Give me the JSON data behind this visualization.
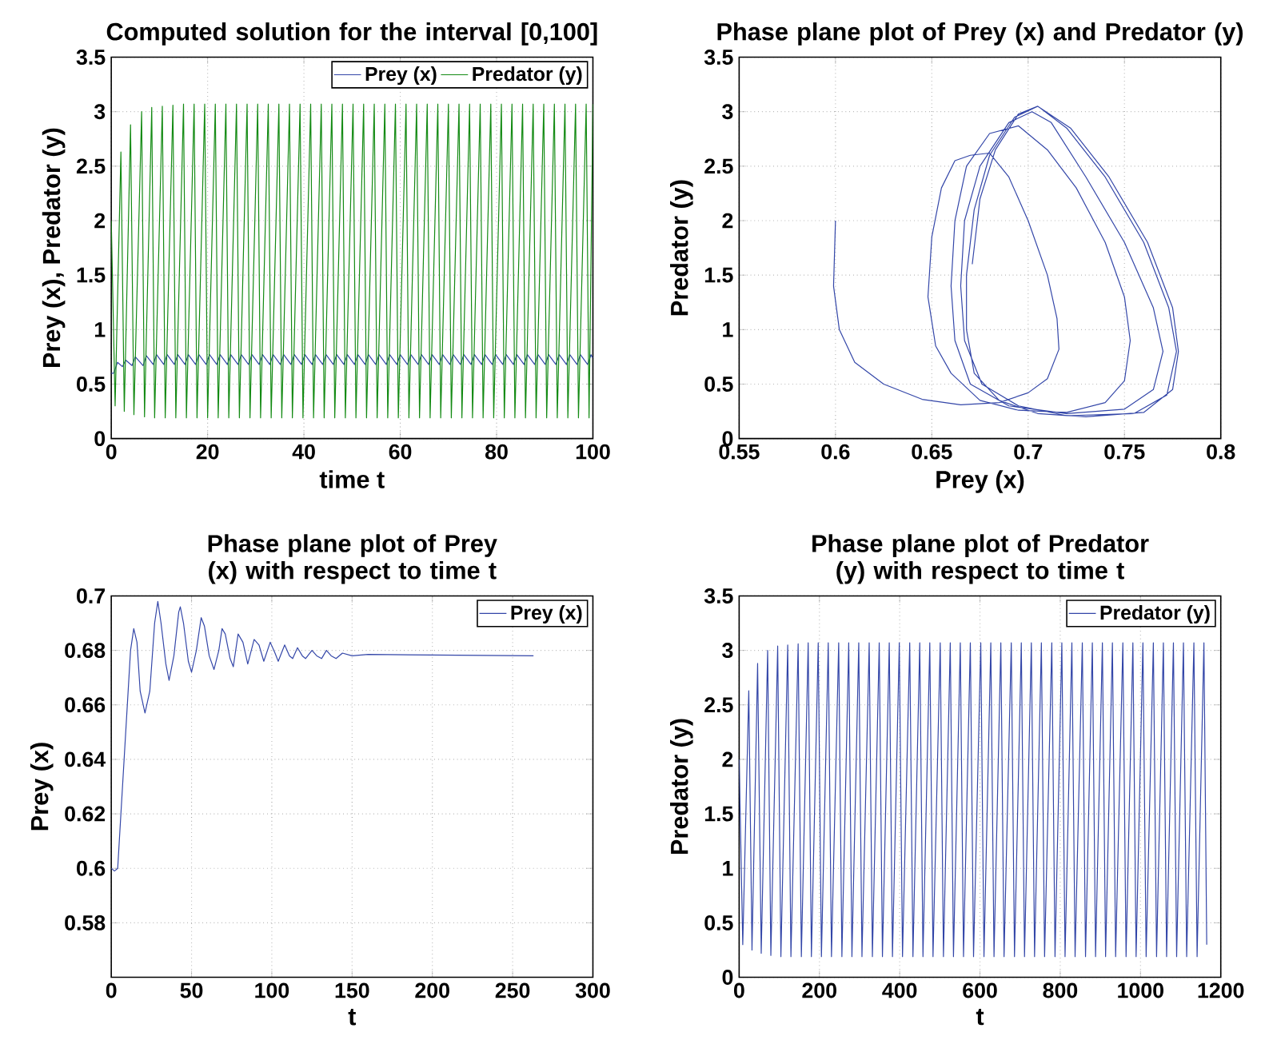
{
  "chart_data": [
    {
      "type": "line",
      "title": "Computed solution for the interval [0,100]",
      "xlabel": "time t",
      "ylabel": "Prey (x), Predator (y)",
      "xlim": [
        0,
        100
      ],
      "xticks": [
        0,
        20,
        40,
        60,
        80,
        100
      ],
      "ylim": [
        0,
        3.5
      ],
      "yticks": [
        0,
        0.5,
        1,
        1.5,
        2,
        2.5,
        3,
        3.5
      ],
      "grid": true,
      "legend": "top right",
      "series": [
        {
          "name": "Prey (x)",
          "color": "#3346a8",
          "x": [
            0,
            0.5,
            1.3,
            2.3,
            3.0,
            4.3,
            5.0,
            6.6,
            7.3,
            8.7,
            9.4,
            10.9,
            11.6,
            13.1,
            13.8,
            15.3,
            16.0,
            17.5,
            18.2,
            19.7,
            20.4,
            21.9,
            22.6,
            24.1,
            24.8,
            26.3,
            27.0,
            28.5,
            29.2,
            30.7,
            31.4,
            32.9,
            33.6,
            35.1,
            35.8,
            37.3,
            38.0,
            39.5,
            40.2,
            41.7,
            42.4,
            43.9,
            44.6,
            46.1,
            46.8,
            48.3,
            49.0,
            50.5,
            51.2,
            52.7,
            53.4,
            54.9,
            55.6,
            57.1,
            57.8,
            59.3,
            60.0,
            61.5,
            62.2,
            63.7,
            64.4,
            65.9,
            66.6,
            68.1,
            68.8,
            70.3,
            71.0,
            72.5,
            73.2,
            74.7,
            75.4,
            76.9,
            77.6,
            79.1,
            79.8,
            81.3,
            82.0,
            83.5,
            84.2,
            85.7,
            86.4,
            87.9,
            88.6,
            90.1,
            90.8,
            92.3,
            93.0,
            94.5,
            95.2,
            96.7,
            97.4,
            98.9,
            99.6,
            100
          ],
          "values": [
            0.6,
            0.6,
            0.7,
            0.66,
            0.72,
            0.67,
            0.75,
            0.67,
            0.76,
            0.68,
            0.77,
            0.68,
            0.77,
            0.68,
            0.77,
            0.68,
            0.77,
            0.68,
            0.77,
            0.68,
            0.77,
            0.68,
            0.77,
            0.68,
            0.77,
            0.68,
            0.77,
            0.68,
            0.77,
            0.68,
            0.77,
            0.68,
            0.77,
            0.68,
            0.77,
            0.68,
            0.77,
            0.68,
            0.77,
            0.68,
            0.77,
            0.68,
            0.77,
            0.68,
            0.77,
            0.68,
            0.77,
            0.68,
            0.77,
            0.68,
            0.77,
            0.68,
            0.77,
            0.68,
            0.77,
            0.68,
            0.77,
            0.68,
            0.77,
            0.68,
            0.77,
            0.68,
            0.77,
            0.68,
            0.77,
            0.68,
            0.77,
            0.68,
            0.77,
            0.68,
            0.77,
            0.68,
            0.77,
            0.68,
            0.77,
            0.68,
            0.77,
            0.68,
            0.77,
            0.68,
            0.77,
            0.68,
            0.77,
            0.68,
            0.77,
            0.68,
            0.77,
            0.68,
            0.77,
            0.68,
            0.77,
            0.68,
            0.77,
            0.74
          ]
        },
        {
          "name": "Predator (y)",
          "color": "#138a13",
          "x": [
            0,
            0.8,
            2.0,
            2.7,
            4.0,
            4.7,
            6.3,
            6.9,
            8.4,
            9.0,
            10.6,
            11.2,
            12.8,
            13.4,
            15.0,
            15.6,
            17.2,
            17.8,
            19.4,
            20.0,
            21.6,
            22.2,
            23.8,
            24.4,
            26.0,
            26.6,
            28.2,
            28.8,
            30.4,
            31.0,
            32.6,
            33.2,
            34.8,
            35.4,
            37.0,
            37.6,
            39.2,
            39.8,
            41.4,
            42.0,
            43.6,
            44.2,
            45.8,
            46.4,
            48.0,
            48.6,
            50.2,
            50.8,
            52.4,
            53.0,
            54.6,
            55.2,
            56.8,
            57.4,
            59.0,
            59.6,
            61.2,
            61.8,
            63.4,
            64.0,
            65.6,
            66.2,
            67.8,
            68.4,
            70.0,
            70.6,
            72.2,
            72.8,
            74.4,
            75.0,
            76.6,
            77.2,
            78.8,
            79.4,
            81.0,
            81.6,
            83.2,
            83.8,
            85.4,
            86.0,
            87.6,
            88.2,
            89.8,
            90.4,
            92.0,
            92.6,
            94.2,
            94.8,
            96.4,
            97.0,
            98.6,
            99.2,
            100
          ],
          "values": [
            2.0,
            0.3,
            2.63,
            0.25,
            2.88,
            0.22,
            3.0,
            0.2,
            3.04,
            0.19,
            3.05,
            0.19,
            3.06,
            0.19,
            3.07,
            0.19,
            3.07,
            0.19,
            3.07,
            0.19,
            3.07,
            0.19,
            3.07,
            0.19,
            3.07,
            0.19,
            3.07,
            0.19,
            3.07,
            0.19,
            3.07,
            0.19,
            3.07,
            0.19,
            3.07,
            0.19,
            3.07,
            0.19,
            3.07,
            0.19,
            3.07,
            0.19,
            3.07,
            0.19,
            3.07,
            0.19,
            3.07,
            0.19,
            3.07,
            0.19,
            3.07,
            0.19,
            3.07,
            0.19,
            3.07,
            0.19,
            3.07,
            0.19,
            3.07,
            0.19,
            3.07,
            0.19,
            3.07,
            0.19,
            3.07,
            0.19,
            3.07,
            0.19,
            3.07,
            0.19,
            3.07,
            0.19,
            3.07,
            0.19,
            3.07,
            0.19,
            3.07,
            0.19,
            3.07,
            0.19,
            3.07,
            0.19,
            3.07,
            0.19,
            3.07,
            0.19,
            3.07,
            0.19,
            3.07,
            0.19,
            3.07,
            0.19,
            3.07
          ]
        }
      ]
    },
    {
      "type": "line",
      "title": "Phase plane plot of Prey (x) and Predator (y)",
      "xlabel": "Prey (x)",
      "ylabel": "Predator (y)",
      "xlim": [
        0.55,
        0.8
      ],
      "xticks": [
        0.55,
        0.6,
        0.65,
        0.7,
        0.75,
        0.8
      ],
      "ylim": [
        0,
        3.5
      ],
      "yticks": [
        0,
        0.5,
        1,
        1.5,
        2,
        2.5,
        3,
        3.5
      ],
      "grid": true,
      "series": [
        {
          "color": "#3346a8",
          "x": [
            0.6,
            0.599,
            0.602,
            0.61,
            0.625,
            0.645,
            0.665,
            0.685,
            0.7,
            0.71,
            0.716,
            0.715,
            0.71,
            0.7,
            0.69,
            0.68,
            0.67,
            0.662,
            0.655,
            0.65,
            0.648,
            0.652,
            0.66,
            0.675,
            0.695,
            0.72,
            0.74,
            0.75,
            0.753,
            0.75,
            0.74,
            0.725,
            0.71,
            0.695,
            0.68,
            0.668,
            0.662,
            0.66,
            0.662,
            0.67,
            0.69,
            0.72,
            0.75,
            0.765,
            0.77,
            0.765,
            0.75,
            0.73,
            0.712,
            0.702,
            0.69,
            0.675,
            0.667,
            0.665,
            0.667,
            0.676,
            0.695,
            0.72,
            0.755,
            0.772,
            0.777,
            0.773,
            0.76,
            0.74,
            0.72,
            0.705,
            0.693,
            0.68,
            0.672,
            0.668,
            0.668,
            0.672,
            0.685,
            0.705,
            0.73,
            0.76,
            0.775,
            0.778,
            0.775,
            0.762,
            0.742,
            0.722,
            0.705,
            0.695,
            0.683,
            0.675,
            0.671
          ],
          "values": [
            2.0,
            1.4,
            1.0,
            0.7,
            0.5,
            0.36,
            0.31,
            0.33,
            0.42,
            0.55,
            0.82,
            1.1,
            1.5,
            2.0,
            2.4,
            2.62,
            2.6,
            2.55,
            2.3,
            1.85,
            1.3,
            0.85,
            0.6,
            0.35,
            0.26,
            0.24,
            0.33,
            0.53,
            0.9,
            1.3,
            1.8,
            2.3,
            2.65,
            2.87,
            2.8,
            2.5,
            2.0,
            1.4,
            0.9,
            0.5,
            0.3,
            0.23,
            0.27,
            0.45,
            0.8,
            1.2,
            1.8,
            2.4,
            2.9,
            3.0,
            2.9,
            2.5,
            2.0,
            1.4,
            0.9,
            0.5,
            0.3,
            0.21,
            0.23,
            0.4,
            0.8,
            1.2,
            1.8,
            2.4,
            2.85,
            3.05,
            2.95,
            2.6,
            2.1,
            1.5,
            1.0,
            0.6,
            0.35,
            0.23,
            0.2,
            0.24,
            0.45,
            0.8,
            1.2,
            1.8,
            2.4,
            2.85,
            3.05,
            2.98,
            2.65,
            2.2,
            1.6
          ]
        }
      ]
    },
    {
      "type": "line",
      "title": "Phase plane plot of Prey (x) with respect to time t",
      "xlabel": "t",
      "ylabel": "Prey (x)",
      "xlim": [
        0,
        300
      ],
      "xticks": [
        0,
        50,
        100,
        150,
        200,
        250,
        300
      ],
      "ylim": [
        0.56,
        0.7
      ],
      "yticks": [
        0.58,
        0.6,
        0.62,
        0.64,
        0.66,
        0.68,
        0.7
      ],
      "grid": true,
      "legend": "top right",
      "series": [
        {
          "name": "Prey (x)",
          "color": "#3346a8",
          "x": [
            0,
            2,
            4,
            8,
            12,
            14,
            16,
            18,
            21,
            24,
            27,
            29,
            31,
            34,
            36,
            39,
            42,
            43,
            45,
            48,
            50,
            53,
            56,
            58,
            61,
            64,
            67,
            69,
            71,
            74,
            76,
            79,
            82,
            85,
            89,
            92,
            95,
            99,
            102,
            104,
            108,
            111,
            113,
            116,
            119,
            121,
            125,
            128,
            131,
            134,
            137,
            140,
            144,
            150,
            160,
            263
          ],
          "values": [
            0.6,
            0.599,
            0.6,
            0.64,
            0.68,
            0.688,
            0.683,
            0.665,
            0.657,
            0.665,
            0.69,
            0.698,
            0.69,
            0.675,
            0.669,
            0.678,
            0.694,
            0.696,
            0.69,
            0.676,
            0.672,
            0.68,
            0.692,
            0.689,
            0.678,
            0.673,
            0.68,
            0.688,
            0.686,
            0.677,
            0.674,
            0.686,
            0.683,
            0.675,
            0.684,
            0.682,
            0.676,
            0.683,
            0.679,
            0.676,
            0.682,
            0.678,
            0.677,
            0.681,
            0.678,
            0.677,
            0.68,
            0.678,
            0.677,
            0.68,
            0.678,
            0.677,
            0.679,
            0.678,
            0.6785,
            0.678
          ]
        }
      ]
    },
    {
      "type": "line",
      "title": "Phase plane plot of Predator (y) with respect to time t",
      "xlabel": "t",
      "ylabel": "Predator (y)",
      "xlim": [
        0,
        1200
      ],
      "xticks": [
        0,
        200,
        400,
        600,
        800,
        1000,
        1200
      ],
      "ylim": [
        0,
        3.5
      ],
      "yticks": [
        0,
        0.5,
        1,
        1.5,
        2,
        2.5,
        3,
        3.5
      ],
      "grid": true,
      "legend": "top right",
      "series": [
        {
          "name": "Predator (y)",
          "color": "#3346a8",
          "x": [
            0,
            9,
            24,
            32,
            46,
            55,
            71,
            79,
            96,
            104,
            121,
            129,
            147,
            155,
            172,
            180,
            197,
            205,
            222,
            230,
            248,
            256,
            273,
            281,
            298,
            306,
            324,
            332,
            349,
            357,
            374,
            382,
            399,
            407,
            425,
            433,
            450,
            458,
            475,
            483,
            501,
            509,
            526,
            534,
            551,
            559,
            576,
            584,
            602,
            610,
            627,
            635,
            652,
            660,
            678,
            686,
            703,
            711,
            728,
            736,
            753,
            761,
            779,
            787,
            804,
            812,
            829,
            837,
            855,
            863,
            880,
            888,
            905,
            913,
            930,
            938,
            956,
            964,
            981,
            989,
            1006,
            1014,
            1032,
            1040,
            1057,
            1065,
            1082,
            1090,
            1107,
            1115,
            1133,
            1141,
            1158,
            1165
          ],
          "values": [
            2.0,
            0.3,
            2.63,
            0.25,
            2.88,
            0.22,
            3.0,
            0.2,
            3.04,
            0.19,
            3.05,
            0.19,
            3.06,
            0.19,
            3.07,
            0.19,
            3.07,
            0.19,
            3.07,
            0.19,
            3.07,
            0.19,
            3.07,
            0.19,
            3.07,
            0.19,
            3.07,
            0.19,
            3.07,
            0.19,
            3.07,
            0.19,
            3.07,
            0.19,
            3.07,
            0.19,
            3.07,
            0.19,
            3.07,
            0.19,
            3.07,
            0.19,
            3.07,
            0.19,
            3.07,
            0.19,
            3.07,
            0.19,
            3.07,
            0.19,
            3.07,
            0.19,
            3.07,
            0.19,
            3.07,
            0.19,
            3.07,
            0.19,
            3.07,
            0.19,
            3.07,
            0.19,
            3.07,
            0.19,
            3.07,
            0.19,
            3.07,
            0.19,
            3.07,
            0.19,
            3.07,
            0.19,
            3.07,
            0.19,
            3.07,
            0.19,
            3.07,
            0.19,
            3.07,
            0.19,
            3.07,
            0.19,
            3.07,
            0.19,
            3.07,
            0.19,
            3.07,
            0.19,
            3.07,
            0.19,
            3.07,
            0.19,
            3.07,
            0.3
          ]
        }
      ]
    }
  ]
}
